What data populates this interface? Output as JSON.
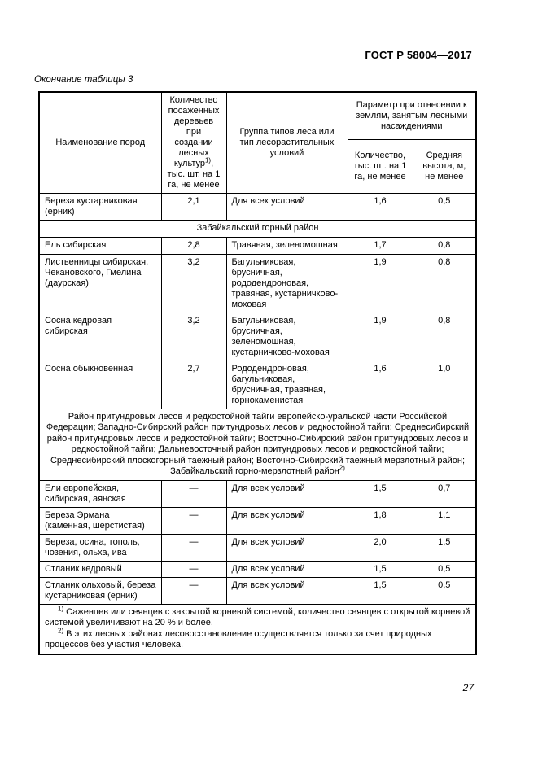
{
  "page": {
    "doc_ref": "ГОСТ Р 58004—2017",
    "table_caption": "Окончание таблицы 3",
    "page_number": "27"
  },
  "table": {
    "header": {
      "col_name": "Наименование пород",
      "col_planted_pre": "Количество посаженных деревьев при создании лесных культур",
      "col_planted_sup": "1)",
      "col_planted_post": ", тыс. шт. на 1 га, не менее",
      "col_group": "Группа типов леса или тип лесорастительных условий",
      "col_param_group": "Параметр при отнесении к землям, занятым лесными насаждениями",
      "col_param_qty": "Количество, тыс. шт. на 1 га, не менее",
      "col_param_height": "Средняя высота, м, не менее"
    },
    "rows": [
      {
        "type": "data",
        "name": "Береза кустарниковая (ерник)",
        "planted": "2,1",
        "group": "Для всех условий",
        "qty": "1,6",
        "height": "0,5"
      },
      {
        "type": "section",
        "text": "Забайкальский горный район",
        "sup": ""
      },
      {
        "type": "data",
        "name": "Ель сибирская",
        "planted": "2,8",
        "group": "Травяная, зеленомошная",
        "qty": "1,7",
        "height": "0,8"
      },
      {
        "type": "data",
        "name": "Лиственницы сибирская, Чекановского, Гмелина (даурская)",
        "planted": "3,2",
        "group": "Багульниковая, брусничная, рододендроновая, травяная, кустарничково-моховая",
        "qty": "1,9",
        "height": "0,8"
      },
      {
        "type": "data",
        "name": "Сосна кедровая сибирская",
        "planted": "3,2",
        "group": "Багульниковая, брусничная, зеленомошная, кустарничково-моховая",
        "qty": "1,9",
        "height": "0,8"
      },
      {
        "type": "data",
        "name": "Сосна обыкновенная",
        "planted": "2,7",
        "group": "Рододендроновая, багульниковая, брусничная, травяная, горнокаменистая",
        "qty": "1,6",
        "height": "1,0"
      },
      {
        "type": "section",
        "text": "Район притундровых лесов и редкостойной тайги европейско-уральской части Российской Федерации; Западно-Сибирский район притундровых лесов и редкостойной тайги; Среднесибирский район притундровых лесов и редкостойной тайги; Восточно-Сибирский район притундровых лесов и редкостойной тайги; Дальневосточный район притундровых лесов и редкостойной тайги; Среднесибирский плоскогорный таежный район; Восточно-Сибирский таежный мерзлотный район; Забайкальский горно-мерзлотный район",
        "sup": "2)"
      },
      {
        "type": "data",
        "name": "Ели европейская, сибирская, аянская",
        "planted": "—",
        "group": "Для всех условий",
        "qty": "1,5",
        "height": "0,7"
      },
      {
        "type": "data",
        "name": "Береза Эрмана (каменная, шерстистая)",
        "planted": "—",
        "group": "Для всех условий",
        "qty": "1,8",
        "height": "1,1"
      },
      {
        "type": "data",
        "name": "Береза, осина, тополь, чозения, ольха, ива",
        "planted": "—",
        "group": "Для всех условий",
        "qty": "2,0",
        "height": "1,5"
      },
      {
        "type": "data",
        "name": "Стланик кедровый",
        "planted": "—",
        "group": "Для всех условий",
        "qty": "1,5",
        "height": "0,5"
      },
      {
        "type": "data",
        "name": "Стланик ольховый, береза кустарниковая (ерник)",
        "planted": "—",
        "group": "Для всех условий",
        "qty": "1,5",
        "height": "0,5"
      }
    ],
    "footnotes": [
      {
        "sup": "1)",
        "text": " Саженцев или сеянцев с закрытой корневой системой, количество сеянцев с открытой корневой системой увеличивают на 20 % и более."
      },
      {
        "sup": "2)",
        "text": " В этих лесных районах лесовосстановление осуществляется только за счет природных процессов без участия человека."
      }
    ]
  }
}
